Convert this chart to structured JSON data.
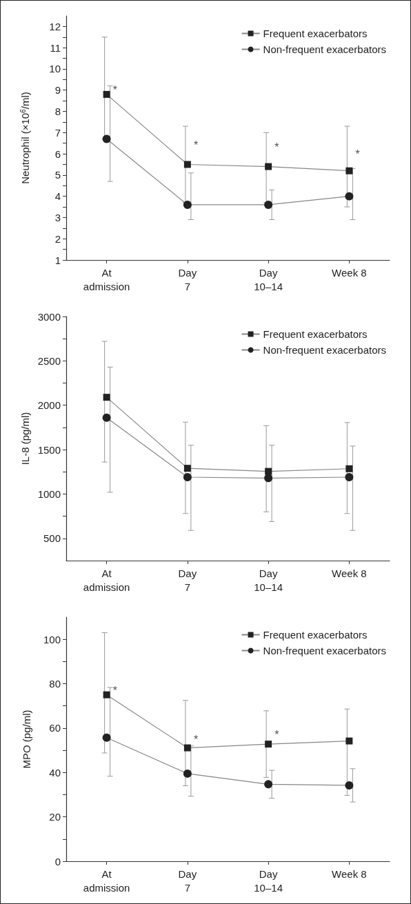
{
  "chart_data": [
    {
      "type": "line",
      "ylabel": "Neutrophil (×10$^{6}$/ml)",
      "categories": [
        "At\nadmission",
        "Day\n7",
        "Day\n10–14",
        "Week 8"
      ],
      "series": [
        {
          "name": "Frequent exacerbators",
          "color": "#222222",
          "marker": "square",
          "values": [
            8.8,
            5.5,
            5.4,
            5.2
          ],
          "errors": [
            [
              6.7,
              11.5
            ],
            [
              3.7,
              7.3
            ],
            [
              3.7,
              7.0
            ],
            [
              3.5,
              7.3
            ]
          ]
        },
        {
          "name": "Non-frequent exacerbators",
          "color": "#222222",
          "marker": "circle",
          "values": [
            6.7,
            3.6,
            3.6,
            4.0
          ],
          "errors": [
            [
              4.7,
              9.2
            ],
            [
              2.9,
              5.1
            ],
            [
              2.9,
              4.3
            ],
            [
              2.9,
              5.3
            ]
          ]
        }
      ],
      "ylim": [
        1,
        12.5
      ],
      "yticks": [
        {
          "value": 1,
          "label": "1"
        },
        {
          "value": 1.5,
          "label": null
        },
        2,
        {
          "value": 2.5,
          "label": null
        },
        3,
        {
          "value": 3.5,
          "label": null
        },
        4,
        {
          "value": 4.5,
          "label": null
        },
        5,
        {
          "value": 5.5,
          "label": null
        },
        6,
        {
          "value": 6.5,
          "label": null
        },
        7,
        {
          "value": 7.5,
          "label": null
        },
        8,
        {
          "value": 8.5,
          "label": null
        },
        9,
        {
          "value": 9.5,
          "label": null
        },
        10,
        {
          "value": 10.5,
          "label": null
        },
        11,
        {
          "value": 11.5,
          "label": null
        },
        12
      ],
      "annotations": [
        {
          "text": "*",
          "x": "At\nadmission",
          "y": 9
        },
        {
          "text": "*",
          "x": "Day\n7",
          "y": 6.4
        },
        {
          "text": "*",
          "x": "Day\n10–14",
          "y": 6.3
        },
        {
          "text": "*",
          "x": "Week 8",
          "y": 6.0
        }
      ],
      "legend": "top right",
      "grid": false,
      "line_style": "solid"
    },
    {
      "type": "line",
      "ylabel": "IL-8 (pg/ml)",
      "categories": [
        "At\nadmission",
        "Day\n7",
        "Day\n10–14",
        "Week 8"
      ],
      "series": [
        {
          "name": "Frequent exacerbators",
          "color": "#222222",
          "marker": "square",
          "values": [
            2090,
            1290,
            1255,
            1285
          ],
          "errors": [
            [
              1360,
              2720
            ],
            [
              780,
              1810
            ],
            [
              800,
              1770
            ],
            [
              780,
              1805
            ]
          ]
        },
        {
          "name": "Non-frequent exacerbators",
          "color": "#222222",
          "marker": "circle",
          "values": [
            1860,
            1190,
            1180,
            1190
          ],
          "errors": [
            [
              1020,
              2430
            ],
            [
              590,
              1550
            ],
            [
              690,
              1550
            ],
            [
              590,
              1540
            ]
          ]
        }
      ],
      "ylim": [
        250,
        3000
      ],
      "yticks": [
        500,
        {
          "value": 750,
          "label": null
        },
        1000,
        {
          "value": 1250,
          "label": null
        },
        1500,
        {
          "value": 1750,
          "label": null
        },
        2000,
        {
          "value": 2250,
          "label": null
        },
        2500,
        {
          "value": 2750,
          "label": null
        },
        3000
      ],
      "legend": "top right",
      "grid": false,
      "line_style": "solid"
    },
    {
      "type": "line",
      "ylabel": "MPO (pg/ml)",
      "categories": [
        "At\nadmission",
        "Day\n7",
        "Day\n10–14",
        "Week 8"
      ],
      "series": [
        {
          "name": "Frequent exacerbators",
          "color": "#222222",
          "marker": "square",
          "values": [
            75,
            51.1,
            52.8,
            54.2
          ],
          "errors": [
            [
              48.8,
              103
            ],
            [
              34,
              72.5
            ],
            [
              37.8,
              67.8
            ],
            [
              29.7,
              68.6
            ]
          ]
        },
        {
          "name": "Non-frequent exacerbators",
          "color": "#222222",
          "marker": "circle",
          "values": [
            55.7,
            39.5,
            34.7,
            34.2
          ],
          "errors": [
            [
              38.3,
              78.3
            ],
            [
              29.3,
              52
            ],
            [
              28.4,
              41
            ],
            [
              26.7,
              41.7
            ]
          ]
        }
      ],
      "ylim": [
        0,
        110
      ],
      "yticks": [
        0,
        {
          "value": 10,
          "label": null
        },
        20,
        {
          "value": 30,
          "label": null
        },
        40,
        {
          "value": 50,
          "label": null
        },
        60,
        {
          "value": 70,
          "label": null
        },
        80,
        {
          "value": 90,
          "label": null
        },
        100
      ],
      "annotations": [
        {
          "text": "*",
          "x": "At\nadmission",
          "y": 77
        },
        {
          "text": "*",
          "x": "Day\n7",
          "y": 55
        },
        {
          "text": "*",
          "x": "Day\n10–14",
          "y": 57
        }
      ],
      "legend": "top right",
      "grid": false,
      "line_style": "solid"
    }
  ]
}
